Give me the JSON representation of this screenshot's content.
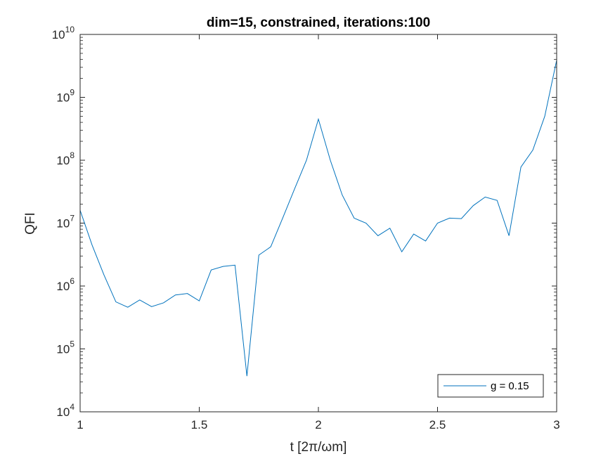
{
  "chart_data": {
    "type": "line",
    "title": "dim=15, constrained, iterations:100",
    "xlabel": "t [2π/ωm]",
    "ylabel": "QFI",
    "xlim": [
      1,
      3
    ],
    "ylim": [
      10000,
      10000000000
    ],
    "yscale": "log",
    "x_ticks": [
      1,
      1.5,
      2,
      2.5,
      3
    ],
    "x_tick_labels": [
      "1",
      "1.5",
      "2",
      "2.5",
      "3"
    ],
    "y_ticks": [
      4,
      5,
      6,
      7,
      8,
      9,
      10
    ],
    "y_tick_base": "10",
    "grid": false,
    "legend_position": "bottom-right",
    "series": [
      {
        "name": "g = 0.15",
        "color": "#0072BD",
        "x": [
          1.0,
          1.05,
          1.1,
          1.15,
          1.2,
          1.25,
          1.3,
          1.35,
          1.4,
          1.45,
          1.5,
          1.55,
          1.6,
          1.65,
          1.7,
          1.75,
          1.8,
          1.85,
          1.9,
          1.95,
          2.0,
          2.05,
          2.1,
          2.15,
          2.2,
          2.25,
          2.3,
          2.35,
          2.4,
          2.45,
          2.5,
          2.55,
          2.6,
          2.65,
          2.7,
          2.75,
          2.8,
          2.85,
          2.9,
          2.95,
          3.0
        ],
        "y": [
          16000000,
          4500000,
          1500000,
          560000,
          460000,
          600000,
          470000,
          540000,
          720000,
          760000,
          580000,
          1800000,
          2050000,
          2150000,
          37000,
          3100000,
          4200000,
          12000000,
          35000000,
          100000000,
          450000000,
          100000000,
          28000000,
          12000000,
          10000000,
          6300000,
          8300000,
          3500000,
          6700000,
          5200000,
          10000000,
          12000000,
          11800000,
          19000000,
          26000000,
          23000000,
          6300000,
          78000000,
          145000000,
          500000000,
          3900000000
        ]
      }
    ]
  }
}
